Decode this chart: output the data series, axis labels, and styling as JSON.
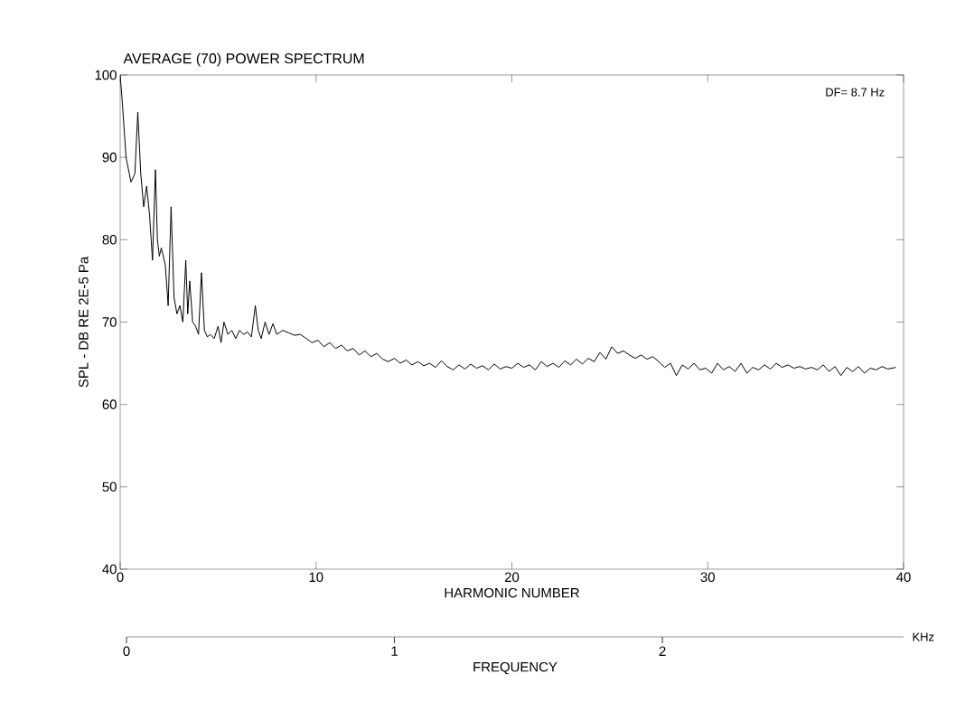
{
  "chart_data": {
    "type": "line",
    "title": "AVERAGE (70) POWER SPECTRUM",
    "xlabel": "HARMONIC NUMBER",
    "ylabel": "SPL - DB RE 2E-5 Pa",
    "x2label": "FREQUENCY",
    "annotations": [
      "DF= 8.7 Hz",
      "KHz"
    ],
    "x": [
      0,
      0.1,
      0.3,
      0.55,
      0.75,
      0.9,
      1.05,
      1.2,
      1.35,
      1.5,
      1.65,
      1.8,
      1.9,
      2.0,
      2.1,
      2.3,
      2.45,
      2.6,
      2.75,
      2.9,
      3.05,
      3.2,
      3.35,
      3.45,
      3.55,
      3.7,
      3.85,
      4.0,
      4.15,
      4.3,
      4.45,
      4.6,
      4.8,
      5.0,
      5.15,
      5.3,
      5.5,
      5.7,
      5.9,
      6.1,
      6.3,
      6.5,
      6.7,
      6.9,
      7.05,
      7.2,
      7.4,
      7.6,
      7.8,
      8.0,
      8.3,
      8.6,
      8.9,
      9.2,
      9.5,
      9.8,
      10.1,
      10.4,
      10.7,
      11.0,
      11.3,
      11.6,
      11.9,
      12.2,
      12.5,
      12.8,
      13.1,
      13.4,
      13.7,
      14.0,
      14.3,
      14.6,
      14.9,
      15.2,
      15.5,
      15.8,
      16.1,
      16.4,
      16.7,
      17.0,
      17.3,
      17.6,
      17.9,
      18.2,
      18.5,
      18.8,
      19.1,
      19.4,
      19.7,
      20.0,
      20.3,
      20.6,
      20.9,
      21.2,
      21.5,
      21.8,
      22.1,
      22.4,
      22.7,
      23.0,
      23.3,
      23.6,
      23.9,
      24.2,
      24.5,
      24.8,
      25.1,
      25.4,
      25.7,
      26.0,
      26.3,
      26.6,
      26.9,
      27.2,
      27.5,
      27.8,
      28.1,
      28.4,
      28.7,
      29.0,
      29.3,
      29.6,
      29.9,
      30.2,
      30.5,
      30.8,
      31.1,
      31.4,
      31.7,
      32.0,
      32.3,
      32.6,
      32.9,
      33.2,
      33.5,
      33.8,
      34.1,
      34.4,
      34.7,
      35.0,
      35.3,
      35.6,
      35.9,
      36.2,
      36.5,
      36.8,
      37.1,
      37.4,
      37.7,
      38.0,
      38.3,
      38.6,
      38.9,
      39.2,
      39.6
    ],
    "values": [
      100,
      97,
      90,
      87,
      88,
      95.5,
      88,
      84,
      86.5,
      83,
      77.5,
      88.5,
      80,
      78,
      79,
      77,
      72,
      84,
      73,
      71,
      72,
      70,
      77.5,
      71,
      75,
      70,
      69.5,
      68.5,
      76,
      69,
      68.2,
      68.5,
      68,
      69.5,
      67.5,
      70,
      68.5,
      69,
      68,
      69,
      68.5,
      68.8,
      68.2,
      72,
      69,
      68,
      70,
      68.5,
      69.8,
      68.5,
      69,
      68.7,
      68.4,
      68.5,
      68,
      67.5,
      67.8,
      67,
      67.5,
      66.8,
      67.2,
      66.5,
      66.8,
      66,
      66.5,
      65.8,
      66.2,
      65.5,
      65.2,
      65.6,
      65,
      65.4,
      64.8,
      65.2,
      64.7,
      65,
      64.5,
      65.3,
      64.6,
      64.2,
      64.8,
      64.3,
      64.9,
      64.4,
      64.7,
      64.2,
      64.9,
      64.3,
      64.6,
      64.4,
      65,
      64.5,
      64.8,
      64.2,
      65.2,
      64.6,
      65,
      64.5,
      65.3,
      64.8,
      65.5,
      64.9,
      65.6,
      65.2,
      66.3,
      65.5,
      67,
      66.2,
      66.5,
      66,
      65.6,
      66,
      65.5,
      65.8,
      65.2,
      64.5,
      65,
      63.5,
      64.8,
      64.3,
      65,
      64.2,
      64.4,
      63.8,
      65,
      64.2,
      64.6,
      64,
      65,
      63.8,
      64.5,
      64.2,
      64.8,
      64.3,
      65,
      64.5,
      64.8,
      64.4,
      64.6,
      64.3,
      64.5,
      64.2,
      64.8,
      64,
      64.6,
      63.5,
      64.5,
      64,
      64.6,
      63.8,
      64.4,
      64.2,
      64.6,
      64.3,
      64.5
    ],
    "color": "#000000",
    "xlim": [
      0,
      40
    ],
    "xticks": [
      0,
      10,
      20,
      30,
      40
    ],
    "ylim": [
      40,
      100
    ],
    "yticks": [
      40,
      50,
      60,
      70,
      80,
      90,
      100
    ],
    "x2lim": [
      0,
      2.9
    ],
    "x2ticks": [
      0,
      1,
      2
    ]
  }
}
